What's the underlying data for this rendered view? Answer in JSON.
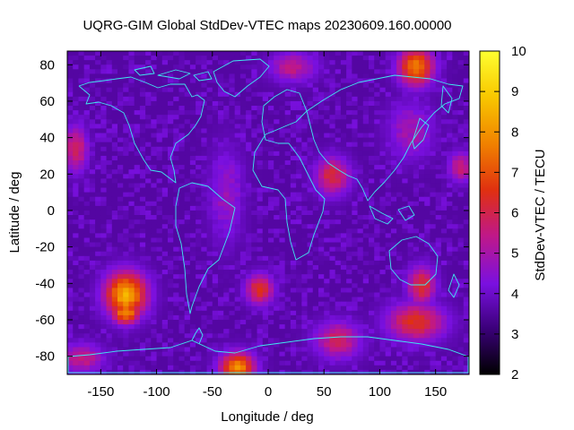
{
  "chart_data": {
    "type": "heatmap",
    "title": "UQRG-GIM Global StdDev-VTEC maps 20230609.160.00000",
    "xlabel": "Longitude / deg",
    "ylabel": "Latitude / deg",
    "colorbar_label": "StdDev-VTEC / TECU",
    "xlim": [
      -180,
      180
    ],
    "ylim": [
      -90,
      87.5
    ],
    "x_ticks": [
      -150,
      -100,
      -50,
      0,
      50,
      100,
      150
    ],
    "y_ticks": [
      -80,
      -60,
      -40,
      -20,
      0,
      20,
      40,
      60,
      80
    ],
    "color_range": [
      2,
      10
    ],
    "color_ticks": [
      2,
      3,
      4,
      5,
      6,
      7,
      8,
      9,
      10
    ],
    "grid": false,
    "legend": "none",
    "overlay": "continent coastlines (cyan)",
    "colormap": [
      "#000000",
      "#3a0078",
      "#7a10e0",
      "#c01888",
      "#e03010",
      "#f08000",
      "#f8c800",
      "#ffff30"
    ],
    "grid_resolution_deg": {
      "lon": 5,
      "lat": 2.5
    },
    "typical_value": 3.6,
    "hotspots": [
      {
        "lon": -130,
        "lat": -45,
        "value": 8.5,
        "rlon": 18,
        "rlat": 12
      },
      {
        "lon": -130,
        "lat": -55,
        "value": 8.0,
        "rlon": 12,
        "rlat": 6
      },
      {
        "lon": 130,
        "lat": 80,
        "value": 7.8,
        "rlon": 15,
        "rlat": 10
      },
      {
        "lon": -30,
        "lat": -85,
        "value": 8.0,
        "rlon": 15,
        "rlat": 8
      },
      {
        "lon": 130,
        "lat": -60,
        "value": 6.5,
        "rlon": 25,
        "rlat": 10
      },
      {
        "lon": 135,
        "lat": -40,
        "value": 6.5,
        "rlon": 12,
        "rlat": 10
      },
      {
        "lon": -10,
        "lat": -42,
        "value": 6.5,
        "rlon": 12,
        "rlat": 8
      },
      {
        "lon": 55,
        "lat": 20,
        "value": 6.2,
        "rlon": 15,
        "rlat": 10
      },
      {
        "lon": -175,
        "lat": 35,
        "value": 6.0,
        "rlon": 10,
        "rlat": 12
      },
      {
        "lon": 170,
        "lat": 25,
        "value": 5.8,
        "rlon": 10,
        "rlat": 8
      },
      {
        "lon": 60,
        "lat": -70,
        "value": 5.8,
        "rlon": 20,
        "rlat": 10
      },
      {
        "lon": -170,
        "lat": -80,
        "value": 5.5,
        "rlon": 20,
        "rlat": 8
      },
      {
        "lon": 20,
        "lat": 80,
        "value": 5.5,
        "rlon": 20,
        "rlat": 8
      },
      {
        "lon": 125,
        "lat": 45,
        "value": 5.0,
        "rlon": 20,
        "rlat": 15
      },
      {
        "lon": -40,
        "lat": 10,
        "value": 4.8,
        "rlon": 15,
        "rlat": 25
      }
    ]
  }
}
